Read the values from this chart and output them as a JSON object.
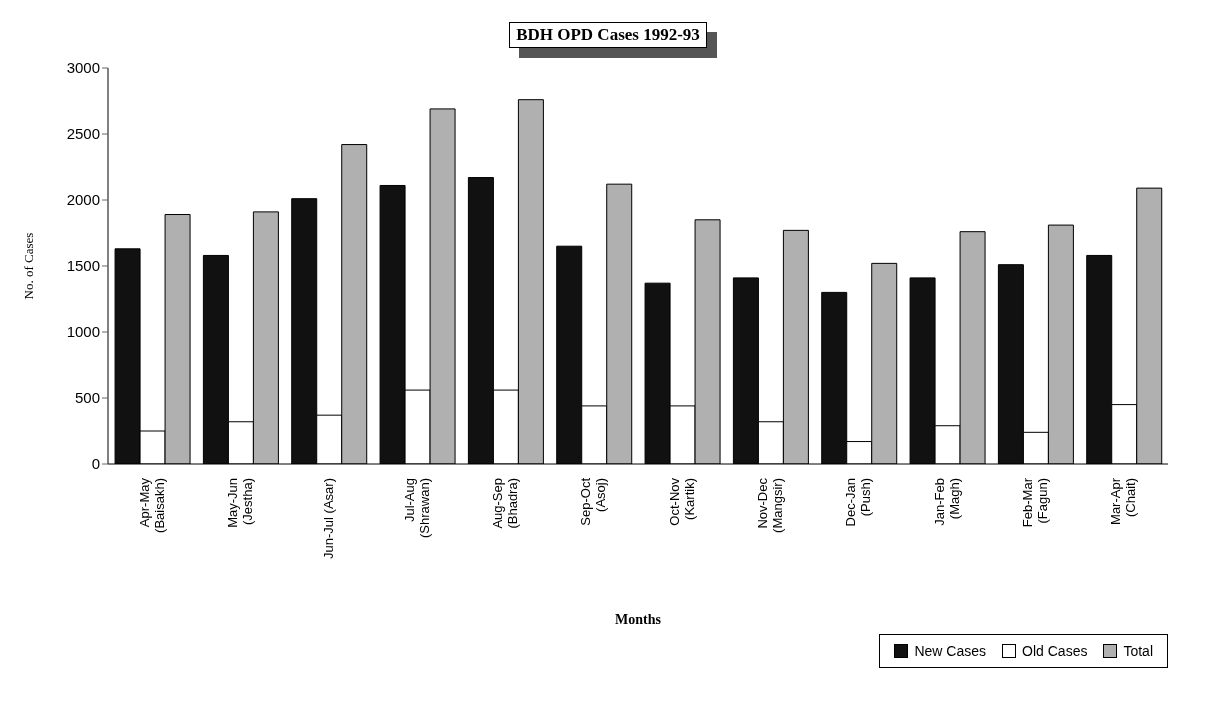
{
  "chart_data": {
    "type": "bar",
    "title": "BDH OPD Cases 1992-93",
    "xlabel": "Months",
    "ylabel": "No. of Cases",
    "categories": [
      "Apr-May\n(Baisakh)",
      "May-Jun\n(Jestha)",
      "Jun-Jul (Asar)",
      "Jul-Aug\n(Shrawan)",
      "Aug-Sep\n(Bhadra)",
      "Sep-Oct\n(Asoj)",
      "Oct-Nov\n(Kartik)",
      "Nov-Dec\n(Mangsir)",
      "Dec-Jan\n(Push)",
      "Jan-Feb\n(Magh)",
      "Feb-Mar\n(Fagun)",
      "Mar-Apr\n(Chait)"
    ],
    "series": [
      {
        "name": "New Cases",
        "color": "#111111",
        "values": [
          1630,
          1580,
          2010,
          2110,
          2170,
          1650,
          1370,
          1410,
          1300,
          1410,
          1510,
          1580
        ]
      },
      {
        "name": "Old Cases",
        "color": "#ffffff",
        "values": [
          250,
          320,
          370,
          560,
          560,
          440,
          440,
          320,
          170,
          290,
          240,
          450
        ]
      },
      {
        "name": "Total",
        "color": "#b0b0b0",
        "values": [
          1890,
          1910,
          2420,
          2690,
          2760,
          2120,
          1850,
          1770,
          1520,
          1760,
          1810,
          2090
        ]
      }
    ],
    "ylim": [
      0,
      3000
    ],
    "yticks": [
      0,
      500,
      1000,
      1500,
      2000,
      2500,
      3000
    ],
    "grid": false,
    "legend": "bottom right"
  }
}
